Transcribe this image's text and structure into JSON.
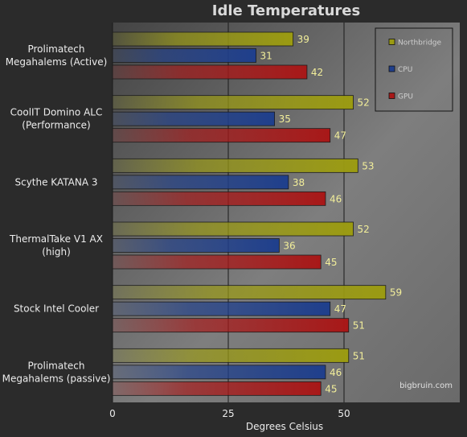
{
  "chart_data": {
    "type": "bar",
    "orientation": "horizontal",
    "title": "Idle Temperatures",
    "xlabel": "Degrees Celsius",
    "ylabel": "",
    "xlim": [
      0,
      75
    ],
    "xticks": [
      0,
      25,
      50
    ],
    "grid": true,
    "legend_position": "top-right",
    "credit": "bigbruin.com",
    "categories": [
      "Prolimatech\nMegahalems (Active)",
      "CoolIT Domino ALC\n(Performance)",
      "Scythe KATANA 3",
      "ThermalTake V1 AX\n(high)",
      "Stock Intel Cooler",
      "Prolimatech\nMegahalems (passive)"
    ],
    "series": [
      {
        "name": "Northbridge",
        "color": "#9b9b12",
        "values": [
          39,
          52,
          53,
          52,
          59,
          51
        ]
      },
      {
        "name": "CPU",
        "color": "#1f3f8c",
        "values": [
          31,
          35,
          38,
          36,
          47,
          46
        ]
      },
      {
        "name": "GPU",
        "color": "#a81818",
        "values": [
          42,
          47,
          46,
          45,
          51,
          45
        ]
      }
    ]
  }
}
